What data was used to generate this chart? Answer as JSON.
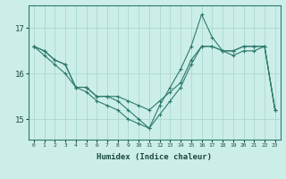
{
  "xlabel": "Humidex (Indice chaleur)",
  "bg_color": "#cceee8",
  "line_color": "#2d7a6e",
  "grid_color": "#aad8d0",
  "x": [
    0,
    1,
    2,
    3,
    4,
    5,
    6,
    7,
    8,
    9,
    10,
    11,
    12,
    13,
    14,
    15,
    16,
    17,
    18,
    19,
    20,
    21,
    22,
    23
  ],
  "series1": [
    16.6,
    16.5,
    16.3,
    16.2,
    15.7,
    15.7,
    15.5,
    15.5,
    15.5,
    15.4,
    15.3,
    15.2,
    15.4,
    15.6,
    15.8,
    16.3,
    16.6,
    16.6,
    16.5,
    16.5,
    16.6,
    16.6,
    16.6,
    15.2
  ],
  "series2": [
    16.6,
    16.5,
    16.3,
    16.2,
    15.7,
    15.7,
    15.5,
    15.5,
    15.4,
    15.2,
    15.0,
    14.8,
    15.3,
    15.7,
    16.1,
    16.6,
    17.3,
    16.8,
    16.5,
    16.5,
    16.6,
    16.6,
    16.6,
    15.2
  ],
  "series3": [
    16.6,
    16.4,
    16.2,
    16.0,
    15.7,
    15.6,
    15.4,
    15.3,
    15.2,
    15.0,
    14.9,
    14.8,
    15.1,
    15.4,
    15.7,
    16.2,
    16.6,
    16.6,
    16.5,
    16.4,
    16.5,
    16.5,
    16.6,
    15.2
  ],
  "ylim_min": 14.55,
  "ylim_max": 17.5,
  "yticks": [
    15,
    16,
    17
  ],
  "xticks": [
    0,
    1,
    2,
    3,
    4,
    5,
    6,
    7,
    8,
    9,
    10,
    11,
    12,
    13,
    14,
    15,
    16,
    17,
    18,
    19,
    20,
    21,
    22,
    23
  ]
}
